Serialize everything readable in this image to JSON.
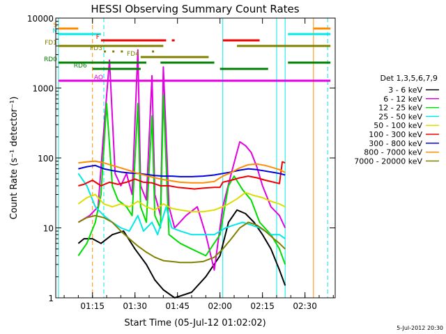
{
  "chart_data": {
    "type": "line",
    "title": "HESSI Observing Summary Count Rates",
    "xlabel": "Start Time (05-Jul-12 01:02:02)",
    "ylabel": "Count Rate (s⁻¹ detector⁻¹)",
    "xscale": "time",
    "yscale": "log",
    "xlim": [
      "01:02:02",
      "02:40:40"
    ],
    "ylim": [
      1,
      10000
    ],
    "x_ticks": [
      "01:15",
      "01:30",
      "01:45",
      "02:00",
      "02:15",
      "02:30"
    ],
    "y_ticks": [
      "1",
      "10",
      "100",
      "1000",
      "10000"
    ],
    "grid": false,
    "legend_position": "right",
    "legend_title": "Det 1,3,5,6,7,9",
    "footer": "5-Jul-2012 20:30",
    "series": [
      {
        "name": "3 - 6 keV",
        "color": "#000000",
        "points": [
          [
            "01:10",
            6
          ],
          [
            "01:12",
            7
          ],
          [
            "01:15",
            7
          ],
          [
            "01:18",
            6
          ],
          [
            "01:22",
            8
          ],
          [
            "01:26",
            9
          ],
          [
            "01:30",
            5
          ],
          [
            "01:34",
            3
          ],
          [
            "01:37",
            1.8
          ],
          [
            "01:40",
            1.3
          ],
          [
            "01:44",
            1
          ],
          [
            "01:50",
            1.2
          ],
          [
            "01:55",
            2
          ],
          [
            "02:00",
            4
          ],
          [
            "02:03",
            12
          ],
          [
            "02:06",
            18
          ],
          [
            "02:09",
            16
          ],
          [
            "02:12",
            12
          ],
          [
            "02:15",
            8
          ],
          [
            "02:18",
            5
          ],
          [
            "02:21",
            2.5
          ],
          [
            "02:23",
            1.5
          ]
        ]
      },
      {
        "name": "6 - 12 keV",
        "color": "#e000e0",
        "points": [
          [
            "01:10",
            12
          ],
          [
            "01:14",
            15
          ],
          [
            "01:17",
            20
          ],
          [
            "01:19",
            250
          ],
          [
            "01:21",
            2500
          ],
          [
            "01:23",
            60
          ],
          [
            "01:25",
            40
          ],
          [
            "01:27",
            60
          ],
          [
            "01:29",
            30
          ],
          [
            "01:31",
            3500
          ],
          [
            "01:32",
            40
          ],
          [
            "01:34",
            25
          ],
          [
            "01:36",
            1500
          ],
          [
            "01:37",
            30
          ],
          [
            "01:39",
            15
          ],
          [
            "01:40",
            2000
          ],
          [
            "01:42",
            20
          ],
          [
            "01:44",
            10
          ],
          [
            "01:48",
            15
          ],
          [
            "01:52",
            20
          ],
          [
            "01:55",
            8
          ],
          [
            "01:58",
            2.5
          ],
          [
            "02:01",
            20
          ],
          [
            "02:04",
            60
          ],
          [
            "02:07",
            170
          ],
          [
            "02:09",
            150
          ],
          [
            "02:11",
            120
          ],
          [
            "02:13",
            75
          ],
          [
            "02:15",
            40
          ],
          [
            "02:18",
            20
          ],
          [
            "02:21",
            15
          ],
          [
            "02:23",
            10
          ]
        ]
      },
      {
        "name": "12 - 25 keV",
        "color": "#00dd00",
        "points": [
          [
            "01:10",
            4
          ],
          [
            "01:13",
            6
          ],
          [
            "01:16",
            12
          ],
          [
            "01:18",
            30
          ],
          [
            "01:20",
            600
          ],
          [
            "01:22",
            40
          ],
          [
            "01:24",
            25
          ],
          [
            "01:27",
            20
          ],
          [
            "01:29",
            15
          ],
          [
            "01:31",
            600
          ],
          [
            "01:32",
            20
          ],
          [
            "01:34",
            12
          ],
          [
            "01:36",
            400
          ],
          [
            "01:37",
            15
          ],
          [
            "01:39",
            10
          ],
          [
            "01:40",
            800
          ],
          [
            "01:42",
            8
          ],
          [
            "01:46",
            6
          ],
          [
            "01:50",
            5
          ],
          [
            "01:55",
            4
          ],
          [
            "02:00",
            8
          ],
          [
            "02:03",
            40
          ],
          [
            "02:05",
            55
          ],
          [
            "02:08",
            35
          ],
          [
            "02:11",
            25
          ],
          [
            "02:14",
            12
          ],
          [
            "02:18",
            8
          ],
          [
            "02:21",
            5
          ],
          [
            "02:23",
            3
          ]
        ]
      },
      {
        "name": "25 - 50 keV",
        "color": "#00e8e8",
        "points": [
          [
            "01:10",
            60
          ],
          [
            "01:13",
            40
          ],
          [
            "01:16",
            20
          ],
          [
            "01:19",
            15
          ],
          [
            "01:22",
            12
          ],
          [
            "01:25",
            10
          ],
          [
            "01:28",
            9
          ],
          [
            "01:31",
            15
          ],
          [
            "01:33",
            9
          ],
          [
            "01:36",
            12
          ],
          [
            "01:38",
            8
          ],
          [
            "01:41",
            20
          ],
          [
            "01:43",
            10
          ],
          [
            "01:46",
            9
          ],
          [
            "01:50",
            8
          ],
          [
            "01:54",
            8
          ],
          [
            "01:58",
            8
          ],
          [
            "02:02",
            10
          ],
          [
            "02:05",
            11
          ],
          [
            "02:08",
            12
          ],
          [
            "02:11",
            11
          ],
          [
            "02:14",
            10
          ],
          [
            "02:18",
            8
          ],
          [
            "02:21",
            8
          ],
          [
            "02:23",
            7
          ]
        ]
      },
      {
        "name": "50 - 100 keV",
        "color": "#dddd00",
        "points": [
          [
            "01:10",
            22
          ],
          [
            "01:13",
            27
          ],
          [
            "01:16",
            30
          ],
          [
            "01:19",
            22
          ],
          [
            "01:22",
            20
          ],
          [
            "01:25",
            22
          ],
          [
            "01:28",
            20
          ],
          [
            "01:31",
            24
          ],
          [
            "01:34",
            20
          ],
          [
            "01:37",
            18
          ],
          [
            "01:40",
            22
          ],
          [
            "01:43",
            19
          ],
          [
            "01:46",
            18
          ],
          [
            "01:50",
            17
          ],
          [
            "01:54",
            17
          ],
          [
            "01:58",
            18
          ],
          [
            "02:01",
            20
          ],
          [
            "02:03",
            22
          ],
          [
            "02:06",
            26
          ],
          [
            "02:09",
            32
          ],
          [
            "02:12",
            29
          ],
          [
            "02:15",
            27
          ],
          [
            "02:18",
            24
          ],
          [
            "02:21",
            22
          ],
          [
            "02:23",
            20
          ]
        ]
      },
      {
        "name": "100 - 300 keV",
        "color": "#ee0000",
        "points": [
          [
            "01:10",
            40
          ],
          [
            "01:12",
            42
          ],
          [
            "01:15",
            48
          ],
          [
            "01:18",
            40
          ],
          [
            "01:21",
            45
          ],
          [
            "01:24",
            42
          ],
          [
            "01:27",
            45
          ],
          [
            "01:30",
            50
          ],
          [
            "01:33",
            45
          ],
          [
            "01:36",
            44
          ],
          [
            "01:39",
            40
          ],
          [
            "01:42",
            40
          ],
          [
            "01:45",
            38
          ],
          [
            "01:48",
            37
          ],
          [
            "01:51",
            36
          ],
          [
            "01:54",
            37
          ],
          [
            "01:58",
            38
          ],
          [
            "02:00",
            38
          ],
          [
            "02:01",
            45
          ],
          [
            "02:04",
            48
          ],
          [
            "02:07",
            52
          ],
          [
            "02:10",
            55
          ],
          [
            "02:13",
            52
          ],
          [
            "02:16",
            48
          ],
          [
            "02:19",
            45
          ],
          [
            "02:21",
            43
          ],
          [
            "02:22",
            88
          ],
          [
            "02:23",
            85
          ]
        ]
      },
      {
        "name": "300 - 800 keV",
        "color": "#0000dd",
        "points": [
          [
            "01:10",
            70
          ],
          [
            "01:13",
            75
          ],
          [
            "01:16",
            78
          ],
          [
            "01:19",
            70
          ],
          [
            "01:22",
            66
          ],
          [
            "01:25",
            63
          ],
          [
            "01:28",
            61
          ],
          [
            "01:31",
            60
          ],
          [
            "01:34",
            58
          ],
          [
            "01:37",
            56
          ],
          [
            "01:40",
            55
          ],
          [
            "01:43",
            55
          ],
          [
            "01:46",
            54
          ],
          [
            "01:50",
            54
          ],
          [
            "01:54",
            55
          ],
          [
            "01:58",
            57
          ],
          [
            "02:01",
            60
          ],
          [
            "02:04",
            63
          ],
          [
            "02:07",
            67
          ],
          [
            "02:10",
            70
          ],
          [
            "02:13",
            68
          ],
          [
            "02:16",
            65
          ],
          [
            "02:19",
            62
          ],
          [
            "02:21",
            60
          ],
          [
            "02:23",
            57
          ]
        ]
      },
      {
        "name": "800 - 7000 keV",
        "color": "#ff8c00",
        "points": [
          [
            "01:10",
            85
          ],
          [
            "01:13",
            88
          ],
          [
            "01:16",
            90
          ],
          [
            "01:19",
            85
          ],
          [
            "01:22",
            78
          ],
          [
            "01:25",
            72
          ],
          [
            "01:28",
            66
          ],
          [
            "01:31",
            60
          ],
          [
            "01:34",
            56
          ],
          [
            "01:37",
            52
          ],
          [
            "01:40",
            49
          ],
          [
            "01:43",
            47
          ],
          [
            "01:46",
            45
          ],
          [
            "01:50",
            44
          ],
          [
            "01:54",
            44
          ],
          [
            "01:58",
            46
          ],
          [
            "02:01",
            55
          ],
          [
            "02:04",
            62
          ],
          [
            "02:07",
            72
          ],
          [
            "02:10",
            80
          ],
          [
            "02:13",
            82
          ],
          [
            "02:16",
            78
          ],
          [
            "02:19",
            72
          ],
          [
            "02:21",
            68
          ],
          [
            "02:23",
            62
          ]
        ]
      },
      {
        "name": "7000 - 20000 keV",
        "color": "#808000",
        "points": [
          [
            "01:10",
            12
          ],
          [
            "01:13",
            14
          ],
          [
            "01:16",
            15
          ],
          [
            "01:19",
            14
          ],
          [
            "01:22",
            12
          ],
          [
            "01:25",
            9
          ],
          [
            "01:28",
            7
          ],
          [
            "01:31",
            5.5
          ],
          [
            "01:34",
            4.5
          ],
          [
            "01:37",
            3.8
          ],
          [
            "01:40",
            3.4
          ],
          [
            "01:43",
            3.3
          ],
          [
            "01:46",
            3.2
          ],
          [
            "01:50",
            3.2
          ],
          [
            "01:54",
            3.3
          ],
          [
            "01:58",
            3.8
          ],
          [
            "02:01",
            5
          ],
          [
            "02:04",
            7
          ],
          [
            "02:07",
            10
          ],
          [
            "02:10",
            12
          ],
          [
            "02:13",
            11
          ],
          [
            "02:16",
            9
          ],
          [
            "02:19",
            7
          ],
          [
            "02:21",
            6
          ],
          [
            "02:23",
            5
          ]
        ]
      }
    ],
    "flag_bars": [
      {
        "label": "S",
        "color": "#ff8c00",
        "segments": [
          [
            "01:03",
            "01:10"
          ],
          [
            "02:33",
            "02:39"
          ]
        ]
      },
      {
        "label": "N",
        "color": "#00e8e8",
        "segments": [
          [
            "01:03",
            "01:18"
          ],
          [
            "02:24",
            "02:39"
          ]
        ]
      },
      {
        "label": "F",
        "color": "#ee0000",
        "segments": [
          [
            "01:18",
            "01:41"
          ],
          [
            "01:43",
            "01:44"
          ],
          [
            "02:01",
            "02:14"
          ]
        ]
      },
      {
        "label": "FD1",
        "color": "#808000",
        "segments": [
          [
            "01:03",
            "01:40"
          ],
          [
            "02:06",
            "02:39"
          ]
        ]
      },
      {
        "label": "FD3",
        "color": "#808000",
        "segments": [
          [
            "01:19",
            "01:19"
          ],
          [
            "01:22",
            "01:22"
          ],
          [
            "01:25",
            "01:25"
          ],
          [
            "01:36",
            "01:36"
          ]
        ]
      },
      {
        "label": "FD4",
        "color": "#808000",
        "segments": [
          [
            "01:32",
            "01:56"
          ]
        ]
      },
      {
        "label": "RD0",
        "color": "#008000",
        "segments": [
          [
            "01:03",
            "01:34"
          ],
          [
            "01:39",
            "01:58"
          ],
          [
            "02:24",
            "02:39"
          ]
        ]
      },
      {
        "label": "RD6",
        "color": "#008000",
        "segments": [
          [
            "01:15",
            "01:32"
          ],
          [
            "02:00",
            "02:17"
          ]
        ]
      },
      {
        "label": "AO",
        "color": "#e000e0",
        "segments": [
          [
            "01:03",
            "02:39"
          ]
        ]
      }
    ],
    "vertical_markers": [
      {
        "time": "01:03",
        "color": "#00e8e8",
        "style": "solid"
      },
      {
        "time": "01:15",
        "color": "#ff8c00",
        "style": "dashed"
      },
      {
        "time": "01:19",
        "color": "#00e8e8",
        "style": "dashed"
      },
      {
        "time": "02:01",
        "color": "#00e8e8",
        "style": "solid"
      },
      {
        "time": "02:20",
        "color": "#00e8e8",
        "style": "solid"
      },
      {
        "time": "02:23",
        "color": "#00e8e8",
        "style": "solid"
      },
      {
        "time": "02:33",
        "color": "#ff8c00",
        "style": "solid"
      },
      {
        "time": "02:38",
        "color": "#00e8e8",
        "style": "dashed"
      }
    ]
  }
}
